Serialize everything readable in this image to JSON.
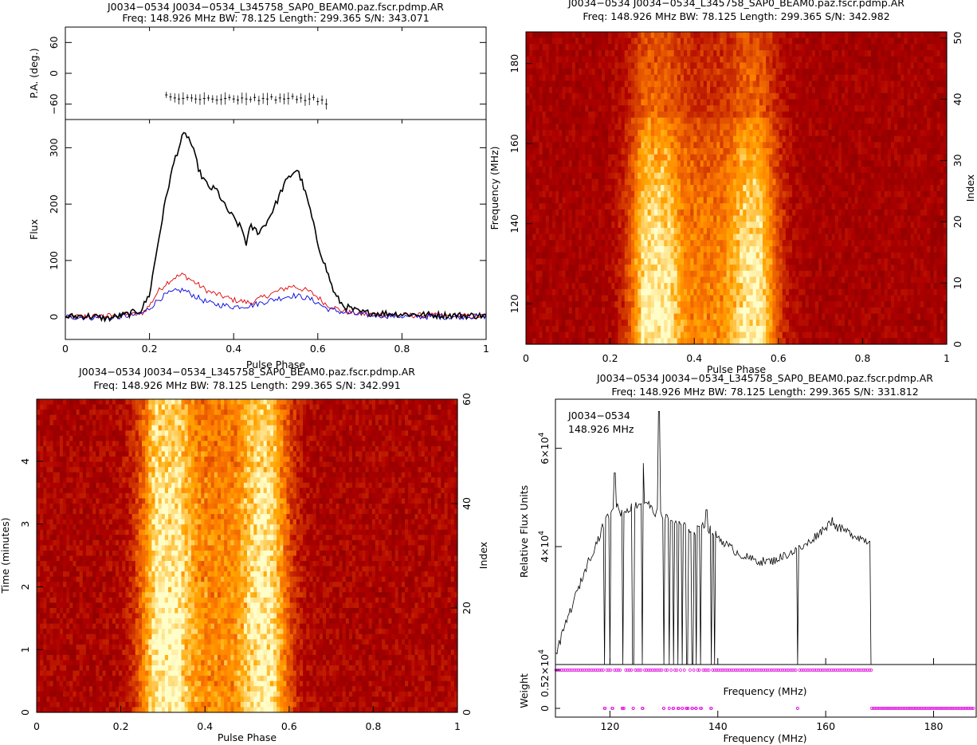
{
  "chart_data": [
    {
      "type": "line",
      "panel": "profile",
      "title": "J0034−0534 J0034−0534_L345758_SAP0_BEAM0.paz.fscr.pdmp.AR",
      "subtitle": "Freq: 148.926 MHz BW: 78.125 Length: 299.365 S/N: 343.071",
      "xlabel": "Pulse Phase",
      "xlim": [
        0,
        1
      ],
      "xticks": [
        "0",
        "0.2",
        "0.4",
        "0.6",
        "0.8",
        "1"
      ],
      "pa": {
        "ylabel": "P.A. (deg.)",
        "ylim": [
          -90,
          90
        ],
        "yticks": [
          "−60",
          "0",
          "60"
        ],
        "x": [
          0.24,
          0.25,
          0.26,
          0.27,
          0.28,
          0.29,
          0.3,
          0.31,
          0.32,
          0.33,
          0.34,
          0.35,
          0.36,
          0.37,
          0.38,
          0.39,
          0.4,
          0.41,
          0.42,
          0.43,
          0.44,
          0.45,
          0.46,
          0.47,
          0.48,
          0.49,
          0.5,
          0.51,
          0.52,
          0.53,
          0.54,
          0.55,
          0.56,
          0.57,
          0.58,
          0.59,
          0.6,
          0.61,
          0.62
        ],
        "y": [
          -42,
          -46,
          -48,
          -50,
          -49,
          -47,
          -48,
          -50,
          -51,
          -49,
          -48,
          -50,
          -52,
          -51,
          -49,
          -47,
          -50,
          -52,
          -48,
          -50,
          -51,
          -47,
          -53,
          -49,
          -50,
          -46,
          -52,
          -48,
          -50,
          -49,
          -45,
          -51,
          -48,
          -53,
          -50,
          -47,
          -55,
          -52,
          -60
        ]
      },
      "flux": {
        "ylabel": "Flux",
        "ylim": [
          -40,
          350
        ],
        "yticks": [
          "0",
          "100",
          "200",
          "300"
        ],
        "series": [
          {
            "color": "#000000",
            "x": [
              0,
              0.05,
              0.1,
              0.15,
              0.18,
              0.2,
              0.22,
              0.24,
              0.26,
              0.28,
              0.29,
              0.3,
              0.32,
              0.34,
              0.36,
              0.38,
              0.4,
              0.42,
              0.43,
              0.44,
              0.46,
              0.48,
              0.5,
              0.52,
              0.54,
              0.55,
              0.56,
              0.58,
              0.6,
              0.62,
              0.64,
              0.66,
              0.7,
              0.8,
              0.9,
              1.0
            ],
            "y": [
              0,
              2,
              -3,
              5,
              12,
              40,
              130,
              215,
              280,
              322,
              322,
              305,
              255,
              230,
              225,
              195,
              175,
              155,
              130,
              160,
              150,
              170,
              200,
              235,
              255,
              262,
              245,
              195,
              130,
              85,
              40,
              20,
              8,
              5,
              3,
              2
            ]
          },
          {
            "color": "#e00000",
            "x": [
              0,
              0.1,
              0.18,
              0.2,
              0.22,
              0.24,
              0.26,
              0.28,
              0.3,
              0.32,
              0.34,
              0.36,
              0.4,
              0.44,
              0.48,
              0.52,
              0.54,
              0.56,
              0.58,
              0.6,
              0.62,
              0.66,
              0.7,
              0.8,
              0.9,
              1.0
            ],
            "y": [
              0,
              2,
              5,
              20,
              45,
              60,
              70,
              75,
              65,
              55,
              45,
              40,
              30,
              25,
              38,
              50,
              55,
              50,
              45,
              35,
              22,
              10,
              5,
              3,
              2,
              1
            ]
          },
          {
            "color": "#0000e0",
            "x": [
              0,
              0.1,
              0.18,
              0.2,
              0.22,
              0.24,
              0.26,
              0.28,
              0.3,
              0.32,
              0.34,
              0.36,
              0.4,
              0.44,
              0.48,
              0.52,
              0.54,
              0.56,
              0.58,
              0.6,
              0.62,
              0.66,
              0.7,
              0.8,
              0.9,
              1.0
            ],
            "y": [
              0,
              -2,
              5,
              15,
              30,
              40,
              45,
              48,
              40,
              32,
              25,
              22,
              18,
              20,
              28,
              35,
              38,
              36,
              32,
              25,
              15,
              8,
              4,
              1,
              0,
              1
            ]
          }
        ]
      }
    },
    {
      "type": "heatmap",
      "panel": "phase-frequency",
      "title": "J0034−0534 J0034−0534_L345758_SAP0_BEAM0.paz.fscr.pdmp.AR",
      "subtitle": "Freq: 148.926 MHz BW: 78.125 Length: 299.365 S/N: 342.982",
      "xlabel": "Pulse Phase",
      "ylabel": "Frequency (MHz)",
      "y2label": "Index",
      "xlim": [
        0,
        1
      ],
      "ylim": [
        109.9,
        187.9
      ],
      "y2lim": [
        0,
        51
      ],
      "xticks": [
        "0",
        "0.2",
        "0.4",
        "0.6",
        "0.8",
        "1"
      ],
      "yticks": [
        "120",
        "140",
        "160",
        "180"
      ],
      "y2ticks": [
        "0",
        "10",
        "20",
        "30",
        "40",
        "50"
      ],
      "colormap": "heat"
    },
    {
      "type": "heatmap",
      "panel": "phase-time",
      "title": "J0034−0534 J0034−0534_L345758_SAP0_BEAM0.paz.fscr.pdmp.AR",
      "subtitle": "Freq: 148.926 MHz BW: 78.125 Length: 299.365 S/N: 342.991",
      "xlabel": "Pulse Phase",
      "ylabel": "Time (minutes)",
      "y2label": "Index",
      "xlim": [
        0,
        1
      ],
      "ylim": [
        0,
        4.99
      ],
      "y2lim": [
        0,
        60
      ],
      "xticks": [
        "0",
        "0.2",
        "0.4",
        "0.6",
        "0.8",
        "1"
      ],
      "yticks": [
        "0",
        "1",
        "2",
        "3",
        "4"
      ],
      "y2ticks": [
        "0",
        "20",
        "40",
        "60"
      ],
      "colormap": "heat"
    },
    {
      "type": "line",
      "panel": "bandpass",
      "title": "J0034−0534 J0034−0534_L345758_SAP0_BEAM0.paz.fscr.pdmp.AR",
      "subtitle": "Freq: 148.926 MHz BW: 78.125 Length: 299.365 S/N: 331.812",
      "annotation_name": "J0034−0534",
      "annotation_freq": "148.926 MHz",
      "xlabel": "Frequency (MHz)",
      "ylabel": "Relative Flux Units",
      "xlim": [
        109.9,
        187.9
      ],
      "xticks": [
        "120",
        "140",
        "160",
        "180"
      ],
      "ylim": [
        16000,
        70000
      ],
      "yticks": [
        {
          "base": "4×10",
          "exp": "4",
          "value": 40000
        },
        {
          "base": "6×10",
          "exp": "4",
          "value": 60000
        }
      ],
      "bandpass": {
        "x": [
          110,
          112,
          114,
          116,
          118,
          119,
          120,
          121,
          122,
          124,
          126,
          127,
          128,
          129,
          130,
          132,
          134,
          136,
          137,
          138,
          140,
          142,
          144,
          146,
          148,
          150,
          152,
          154,
          156,
          158,
          160,
          161,
          162,
          164,
          166,
          168,
          168.5
        ],
        "y": [
          18000,
          25000,
          31000,
          37000,
          42000,
          45000,
          47000,
          49000,
          47000,
          48000,
          49000,
          49000,
          47000,
          47000,
          46000,
          45000,
          44000,
          43000,
          45000,
          44000,
          42000,
          40000,
          38500,
          37500,
          37000,
          37000,
          38000,
          39000,
          40000,
          42000,
          44000,
          45000,
          44000,
          43000,
          42000,
          41000,
          41000
        ]
      },
      "spikes_up": [
        {
          "x": 120.9,
          "y": 55000
        },
        {
          "x": 126.1,
          "y": 57000
        },
        {
          "x": 129.1,
          "y": 67500
        },
        {
          "x": 137.9,
          "y": 47500
        },
        {
          "x": 161.2,
          "y": 46000
        }
      ],
      "dropouts": [
        119.0,
        120.0,
        122.4,
        124.3,
        126.0,
        130.0,
        131.0,
        131.8,
        132.6,
        133.4,
        134.3,
        135.3,
        136.0,
        136.8,
        138.8,
        139.4,
        154.8,
        168.5
      ],
      "weight": {
        "ylabel": "Weight",
        "yticks": [
          "0",
          "0.52×10"
        ],
        "ytick_exp": "4",
        "xlabel_inner": "Frequency (MHz)",
        "zero_channels": [
          119.0,
          120.4,
          122.4,
          124.3,
          126.0,
          130.0,
          131.0,
          131.8,
          132.6,
          133.4,
          134.3,
          135.3,
          136.0,
          136.8,
          138.8,
          154.8
        ],
        "flagged_from": 168.5,
        "marker_color": "#e000e0"
      }
    }
  ]
}
